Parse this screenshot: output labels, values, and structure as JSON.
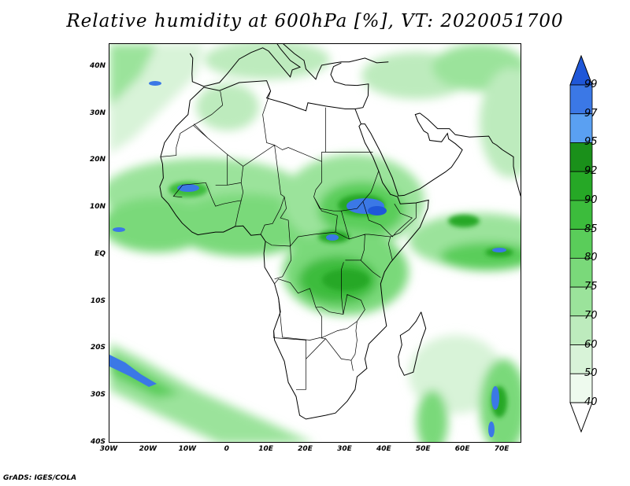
{
  "title": "Relative humidity at 600hPa [%], VT: 2020051700",
  "footer": "GrADS: IGES/COLA",
  "map": {
    "projection": "latlon",
    "lon_range": [
      -30,
      75
    ],
    "lat_range": [
      -40,
      45
    ],
    "lat_ticks": [
      "40N",
      "30N",
      "20N",
      "10N",
      "EQ",
      "10S",
      "20S",
      "30S",
      "40S"
    ],
    "lon_ticks": [
      "30W",
      "20W",
      "10W",
      "0",
      "10E",
      "20E",
      "30E",
      "40E",
      "50E",
      "60E",
      "70E"
    ],
    "lat_tick_values": [
      40,
      30,
      20,
      10,
      0,
      -10,
      -20,
      -30,
      -40
    ],
    "lon_tick_values": [
      -30,
      -20,
      -10,
      0,
      10,
      20,
      30,
      40,
      50,
      60,
      70
    ],
    "variable": "Relative humidity",
    "level": "600hPa",
    "units": "%",
    "valid_time": "2020051700"
  },
  "colorbar": {
    "levels": [
      "99",
      "97",
      "95",
      "92",
      "90",
      "85",
      "80",
      "75",
      "70",
      "60",
      "50",
      "40"
    ],
    "colors": [
      "#1f57d8",
      "#3b78e6",
      "#5aa0f2",
      "#1a901a",
      "#26a826",
      "#3cbc3c",
      "#5acd5a",
      "#7ad97a",
      "#9be39b",
      "#bdebbd",
      "#d8f3d8",
      "#eefaee",
      "#ffffff"
    ],
    "top_arrow_color": "#1f57d8",
    "bottom_arrow_color": "#ffffff"
  }
}
